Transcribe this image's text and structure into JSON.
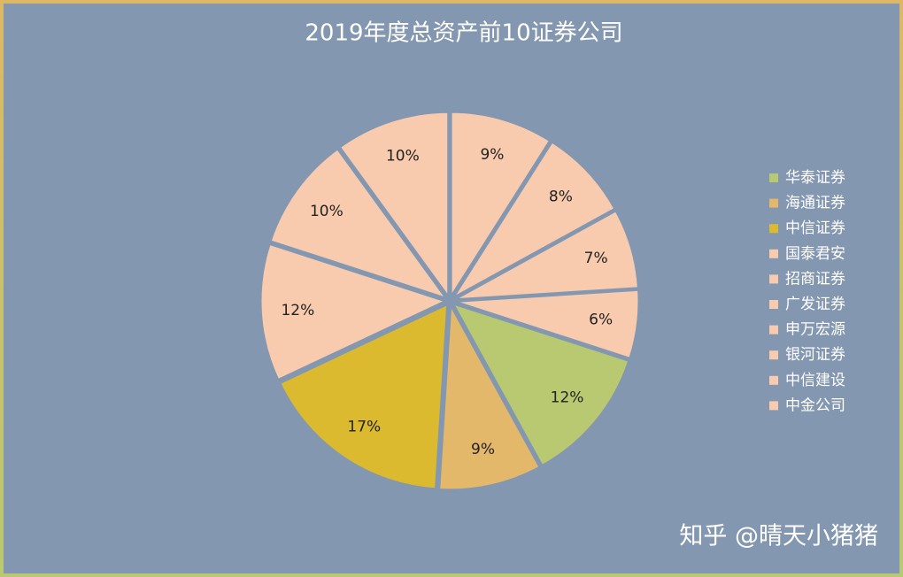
{
  "chart_data": {
    "type": "pie",
    "title": "2019年度总资产前10证券公司",
    "categories": [
      "华泰证券",
      "海通证券",
      "中信证券",
      "国泰君安",
      "招商证券",
      "广发证券",
      "申万宏源",
      "银河证券",
      "中信建设",
      "中金公司"
    ],
    "values": [
      12,
      9,
      17,
      12,
      10,
      10,
      9,
      8,
      7,
      6
    ],
    "value_labels": [
      "12%",
      "9%",
      "17%",
      "12%",
      "10%",
      "10%",
      "9%",
      "8%",
      "7%",
      "6%"
    ],
    "colors": [
      "#b8c971",
      "#e3b86b",
      "#dbba2f",
      "#f8cbae",
      "#f8cbae",
      "#f8cbae",
      "#f8cbae",
      "#f8cbae",
      "#f8cbae",
      "#f8cbae"
    ],
    "legend": "right",
    "watermark": "知乎 @晴天小猪猪"
  }
}
